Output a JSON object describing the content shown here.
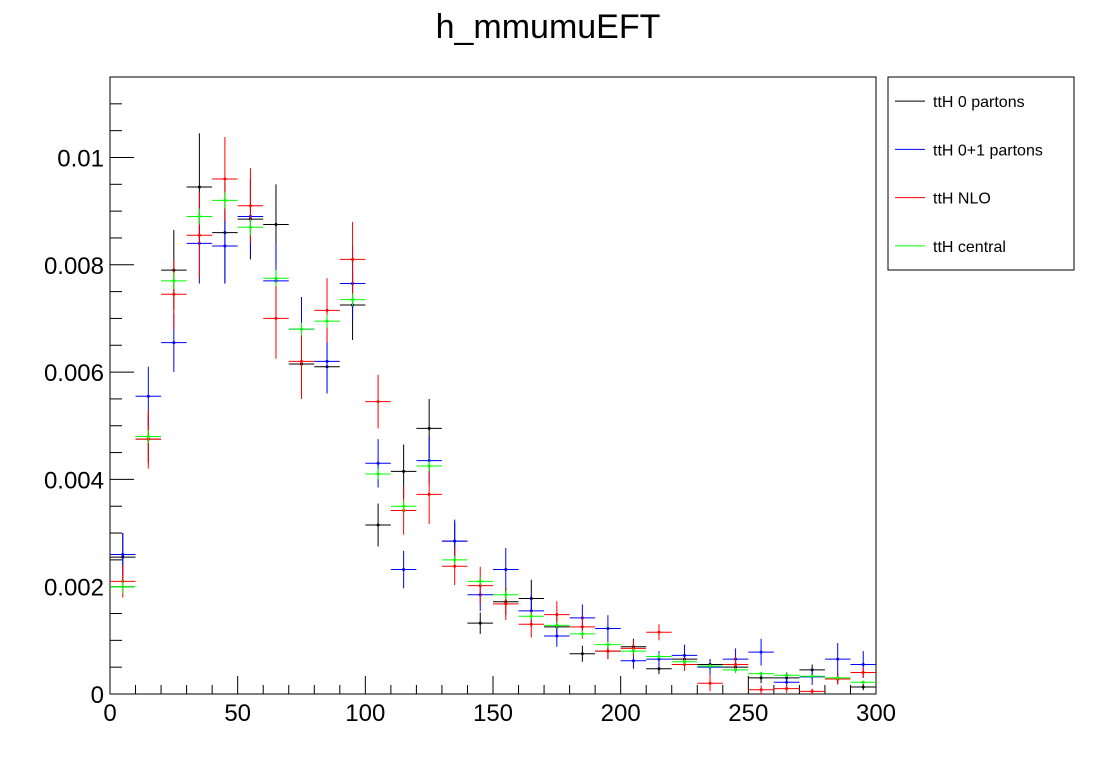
{
  "chart_data": {
    "type": "scatter",
    "title": "h_mmumuEFT",
    "xlabel": "",
    "ylabel": "",
    "xlim": [
      0,
      300
    ],
    "ylim": [
      0,
      0.0115
    ],
    "bin_width": 10,
    "x": [
      5,
      15,
      25,
      35,
      45,
      55,
      65,
      75,
      85,
      95,
      105,
      115,
      125,
      135,
      145,
      155,
      165,
      175,
      185,
      195,
      205,
      215,
      225,
      235,
      245,
      255,
      265,
      275,
      285,
      295
    ],
    "x_ticks": [
      {
        "value": 0,
        "label": "0"
      },
      {
        "value": 50,
        "label": "50"
      },
      {
        "value": 100,
        "label": "100"
      },
      {
        "value": 150,
        "label": "150"
      },
      {
        "value": 200,
        "label": "200"
      },
      {
        "value": 250,
        "label": "250"
      },
      {
        "value": 300,
        "label": "300"
      }
    ],
    "y_ticks": [
      {
        "value": 0,
        "label": "0"
      },
      {
        "value": 0.002,
        "label": "0.002"
      },
      {
        "value": 0.004,
        "label": "0.004"
      },
      {
        "value": 0.006,
        "label": "0.006"
      },
      {
        "value": 0.008,
        "label": "0.008"
      },
      {
        "value": 0.01,
        "label": "0.01"
      }
    ],
    "grid": false,
    "legend_position": "top-right-outside",
    "series": [
      {
        "name": "ttH 0 partons",
        "color": "#000000",
        "values": [
          0.00255,
          0.00475,
          0.0079,
          0.00945,
          0.0086,
          0.00885,
          0.00875,
          0.00615,
          0.0061,
          0.00725,
          0.00315,
          0.00415,
          0.00495,
          0.00285,
          0.00132,
          0.00172,
          0.00178,
          0.00125,
          0.00075,
          0.0008,
          0.00088,
          0.00047,
          0.00065,
          0.00055,
          0.0005,
          0.0003,
          0.0003,
          0.00045,
          0.00028,
          0.00013
        ],
        "errors": [
          0.00045,
          0.00045,
          0.00075,
          0.001,
          0.00095,
          0.00075,
          0.00075,
          0.00045,
          0.00045,
          0.00065,
          0.0004,
          0.0005,
          0.00055,
          0.00035,
          0.0002,
          0.00025,
          0.00035,
          0.0002,
          0.00015,
          0.00015,
          0.00015,
          0.0001,
          0.00015,
          0.0001,
          0.0001,
          0.0001,
          0.0001,
          0.0001,
          0.0001,
          6e-05
        ]
      },
      {
        "name": "ttH 0+1 partons",
        "color": "#0000ff",
        "values": [
          0.0026,
          0.00555,
          0.00655,
          0.0084,
          0.00835,
          0.0089,
          0.0077,
          0.0068,
          0.0062,
          0.00765,
          0.0043,
          0.00232,
          0.00435,
          0.00285,
          0.00185,
          0.00232,
          0.00155,
          0.00108,
          0.00142,
          0.00122,
          0.00062,
          0.00065,
          0.00072,
          0.0005,
          0.00065,
          0.00078,
          0.00022,
          0.00032,
          0.00065,
          0.00055
        ],
        "errors": [
          0.0004,
          0.00055,
          0.00055,
          0.00075,
          0.0007,
          0.0007,
          0.0007,
          0.0006,
          0.0006,
          0.0007,
          0.00045,
          0.00035,
          0.00045,
          0.0004,
          0.0003,
          0.0004,
          0.0003,
          0.0002,
          0.00025,
          0.00025,
          0.00015,
          0.00015,
          0.0002,
          0.00015,
          0.0002,
          0.00025,
          0.0001,
          0.00015,
          0.0003,
          0.00025
        ]
      },
      {
        "name": "ttH NLO",
        "color": "#ff0000",
        "values": [
          0.0021,
          0.00475,
          0.00745,
          0.00855,
          0.0096,
          0.0091,
          0.007,
          0.0062,
          0.00715,
          0.0081,
          0.00545,
          0.00342,
          0.00372,
          0.00238,
          0.00202,
          0.00168,
          0.0013,
          0.00148,
          0.00125,
          0.0008,
          0.00085,
          0.00115,
          0.00055,
          0.0002,
          0.00055,
          8e-05,
          0.0001,
          5e-05,
          0.00028,
          0.0004
        ],
        "errors": [
          0.0003,
          0.00055,
          0.00065,
          0.0008,
          0.00078,
          0.0007,
          0.00075,
          0.0007,
          0.0006,
          0.0007,
          0.0005,
          0.00045,
          0.00055,
          0.00035,
          0.00035,
          0.0003,
          0.00025,
          0.00025,
          0.00022,
          0.00015,
          0.00015,
          0.00015,
          0.00012,
          0.00015,
          0.00015,
          8e-05,
          8e-05,
          5e-05,
          0.0001,
          0.0001
        ]
      },
      {
        "name": "ttH central",
        "color": "#00ff00",
        "values": [
          0.002,
          0.0048,
          0.0077,
          0.0089,
          0.0092,
          0.0087,
          0.00775,
          0.0068,
          0.00695,
          0.00735,
          0.0041,
          0.0035,
          0.00425,
          0.0025,
          0.0021,
          0.00185,
          0.00145,
          0.00128,
          0.00112,
          0.00092,
          0.0008,
          0.0007,
          0.0006,
          0.00052,
          0.00045,
          0.00038,
          0.00035,
          0.00033,
          0.0003,
          0.00022
        ],
        "errors": [
          0.00012,
          0.00012,
          0.00015,
          0.00015,
          0.00015,
          0.00015,
          0.00015,
          0.00012,
          0.00012,
          0.00012,
          0.0001,
          0.0001,
          0.0001,
          8e-05,
          8e-05,
          8e-05,
          7e-05,
          6e-05,
          6e-05,
          5e-05,
          5e-05,
          5e-05,
          4e-05,
          4e-05,
          4e-05,
          3e-05,
          3e-05,
          3e-05,
          3e-05,
          3e-05
        ]
      }
    ]
  }
}
